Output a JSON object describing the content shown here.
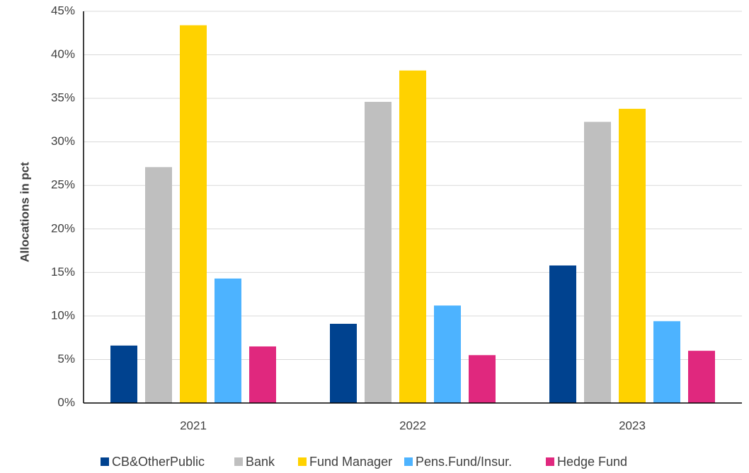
{
  "chart_data": {
    "type": "bar",
    "y_label": "Allocations in pct",
    "categories": [
      "2021",
      "2022",
      "2023"
    ],
    "series": [
      {
        "name": "CB&OtherPublic",
        "color": "#00428f",
        "values": [
          6.6,
          9.1,
          15.8
        ]
      },
      {
        "name": "Bank",
        "color": "#bfbfbf",
        "values": [
          27.1,
          34.6,
          32.3
        ]
      },
      {
        "name": "Fund Manager",
        "color": "#ffd200",
        "values": [
          43.4,
          38.2,
          33.8
        ]
      },
      {
        "name": "Pens.Fund/Insur.",
        "color": "#4db3ff",
        "values": [
          14.3,
          11.2,
          9.4
        ]
      },
      {
        "name": "Hedge Fund",
        "color": "#e0287e",
        "values": [
          6.5,
          5.5,
          6.0
        ]
      }
    ],
    "ylim": [
      0,
      45
    ],
    "yticks": [
      {
        "value": 0,
        "label": "0%"
      },
      {
        "value": 5,
        "label": "5%"
      },
      {
        "value": 10,
        "label": "10%"
      },
      {
        "value": 15,
        "label": "15%"
      },
      {
        "value": 20,
        "label": "20%"
      },
      {
        "value": 25,
        "label": "25%"
      },
      {
        "value": 30,
        "label": "30%"
      },
      {
        "value": 35,
        "label": "35%"
      },
      {
        "value": 40,
        "label": "40%"
      },
      {
        "value": 45,
        "label": "45%"
      }
    ],
    "grid": true,
    "legend": "bottom"
  }
}
